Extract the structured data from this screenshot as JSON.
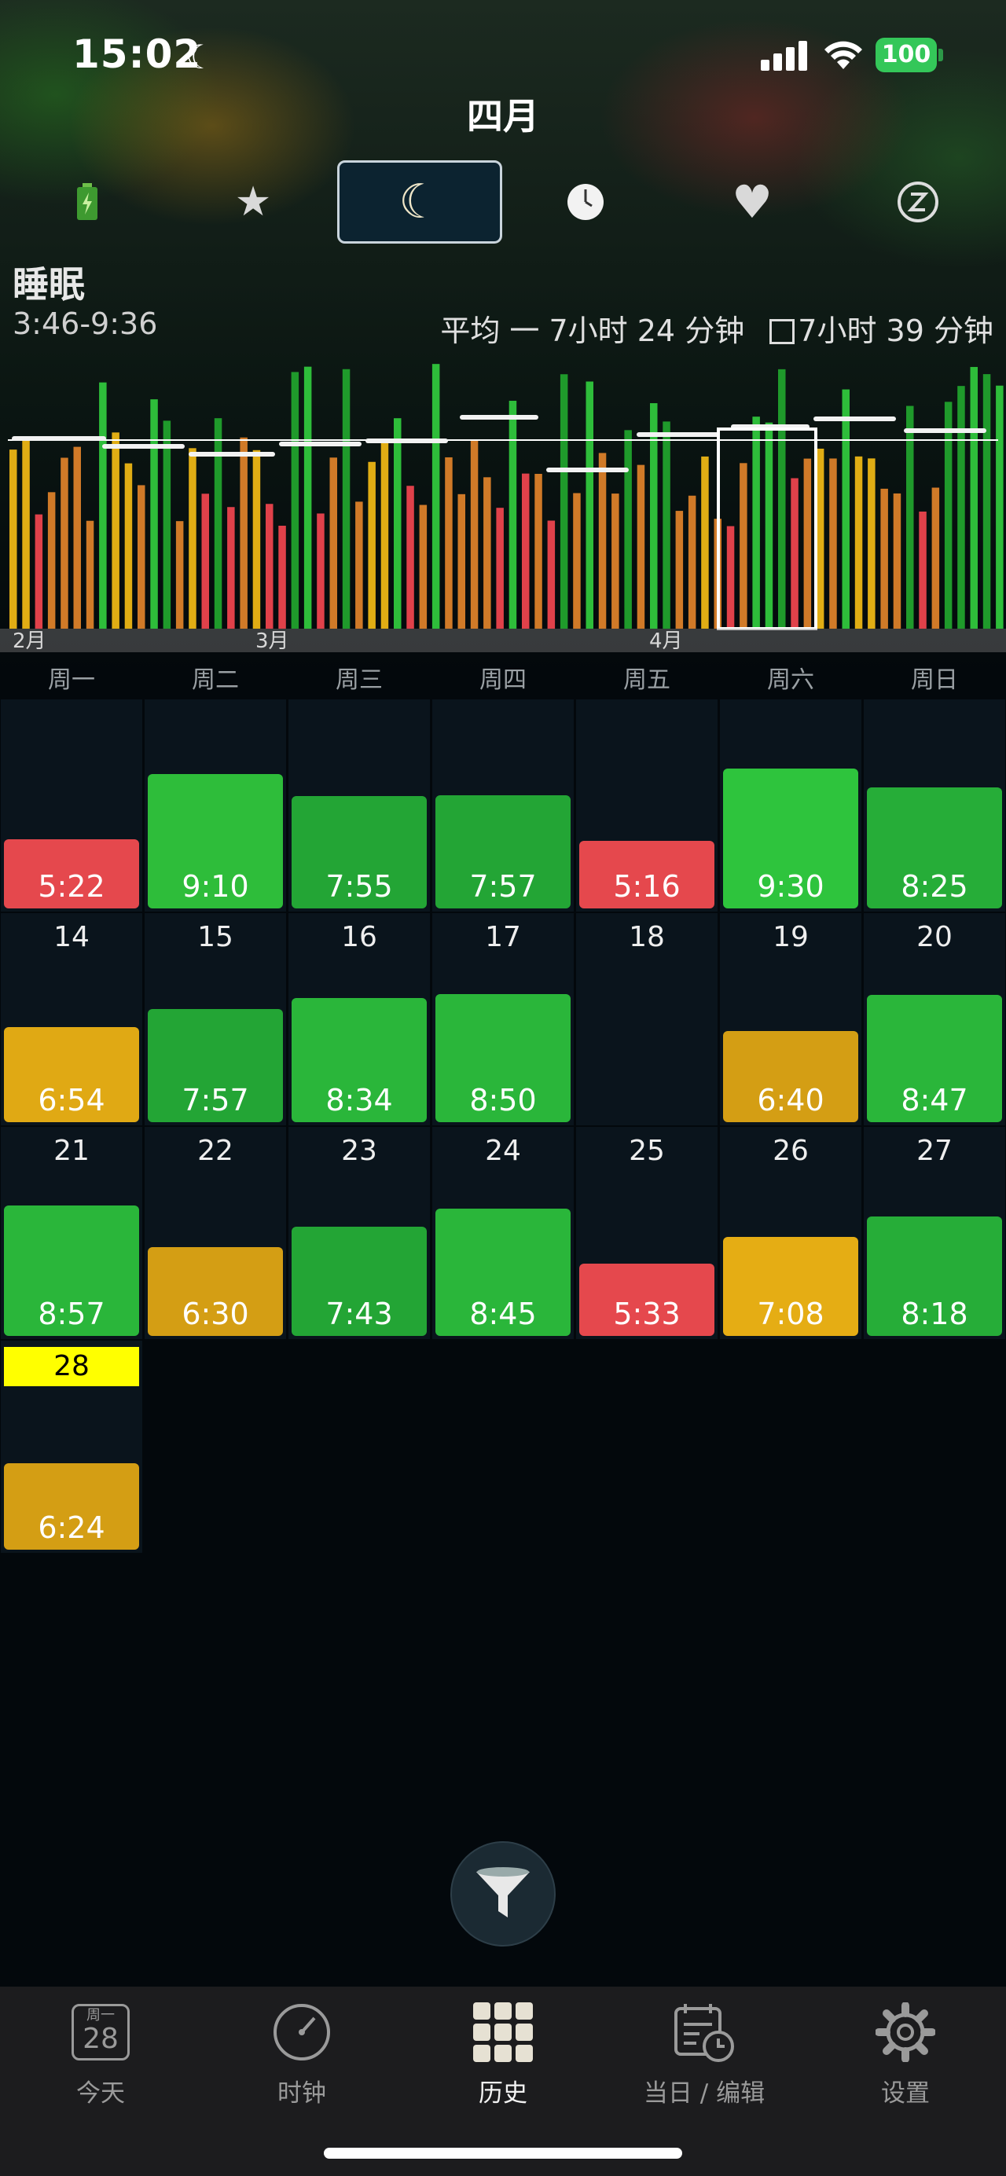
{
  "status_bar": {
    "time": "15:02",
    "battery": "100"
  },
  "header": {
    "title": "四月"
  },
  "mode_tabs": [
    {
      "name": "battery-icon",
      "glyph": "🔋"
    },
    {
      "name": "star-icon",
      "glyph": "★"
    },
    {
      "name": "moon-icon",
      "glyph": "☾",
      "active": true
    },
    {
      "name": "clock-icon",
      "glyph": "🕐"
    },
    {
      "name": "heart-icon",
      "glyph": "♥"
    },
    {
      "name": "sleep-z-icon",
      "glyph": "Ⓩ"
    }
  ],
  "section": {
    "title": "睡眠",
    "range": "3:46-9:36",
    "average_label": "平均 一 7小时 24 分钟",
    "alt_average": "7小时 39 分钟"
  },
  "chart_data": {
    "type": "bar",
    "month_labels": [
      "2月",
      "3月",
      "4月"
    ],
    "reference_hours": 7.4,
    "colors": {
      "green": "#2ebd3a",
      "dark_green": "#1f9a2b",
      "yellow": "#e0ad14",
      "orange": "#d07a28",
      "red": "#e0414a"
    }
  },
  "weekdays": [
    "周一",
    "周二",
    "周三",
    "周四",
    "周五",
    "周六",
    "周日"
  ],
  "calendar": {
    "rows": [
      [
        {
          "day": "",
          "value": "5:22",
          "hours": 5.37,
          "color": "#e5484d"
        },
        {
          "day": "",
          "value": "9:10",
          "hours": 9.17,
          "color": "#2ebd3a"
        },
        {
          "day": "",
          "value": "7:55",
          "hours": 7.92,
          "color": "#23a535"
        },
        {
          "day": "",
          "value": "7:57",
          "hours": 7.95,
          "color": "#23a535"
        },
        {
          "day": "",
          "value": "5:16",
          "hours": 5.27,
          "color": "#e5484d"
        },
        {
          "day": "",
          "value": "9:30",
          "hours": 9.5,
          "color": "#2ec43d"
        },
        {
          "day": "",
          "value": "8:25",
          "hours": 8.42,
          "color": "#26ad38"
        }
      ],
      [
        {
          "day": "14",
          "value": "6:54",
          "hours": 6.9,
          "color": "#e0a914"
        },
        {
          "day": "15",
          "value": "7:57",
          "hours": 7.95,
          "color": "#23a535"
        },
        {
          "day": "16",
          "value": "8:34",
          "hours": 8.57,
          "color": "#2ab63a"
        },
        {
          "day": "17",
          "value": "8:50",
          "hours": 8.83,
          "color": "#2ab63a"
        },
        {
          "day": "18",
          "value": "",
          "hours": 0,
          "color": ""
        },
        {
          "day": "19",
          "value": "6:40",
          "hours": 6.67,
          "color": "#d49e14"
        },
        {
          "day": "20",
          "value": "8:47",
          "hours": 8.78,
          "color": "#2ab63a"
        }
      ],
      [
        {
          "day": "21",
          "value": "8:57",
          "hours": 8.95,
          "color": "#2ab63a"
        },
        {
          "day": "22",
          "value": "6:30",
          "hours": 6.5,
          "color": "#d49e14"
        },
        {
          "day": "23",
          "value": "7:43",
          "hours": 7.72,
          "color": "#23a535"
        },
        {
          "day": "24",
          "value": "8:45",
          "hours": 8.75,
          "color": "#2ab63a"
        },
        {
          "day": "25",
          "value": "5:33",
          "hours": 5.55,
          "color": "#e5484d"
        },
        {
          "day": "26",
          "value": "7:08",
          "hours": 7.13,
          "color": "#e5ad14"
        },
        {
          "day": "27",
          "value": "8:18",
          "hours": 8.3,
          "color": "#26ad38"
        }
      ],
      [
        {
          "day": "28",
          "value": "6:24",
          "hours": 6.4,
          "color": "#d49e14",
          "today": true
        }
      ]
    ]
  },
  "tabbar": [
    {
      "label": "今天",
      "icon": "calendar-day-icon",
      "badge_top": "周一",
      "badge_num": "28"
    },
    {
      "label": "时钟",
      "icon": "clock-dial-icon"
    },
    {
      "label": "历史",
      "icon": "grid-icon",
      "active": true
    },
    {
      "label": "当日 / 编辑",
      "icon": "calendar-clock-icon"
    },
    {
      "label": "设置",
      "icon": "gear-icon"
    }
  ]
}
